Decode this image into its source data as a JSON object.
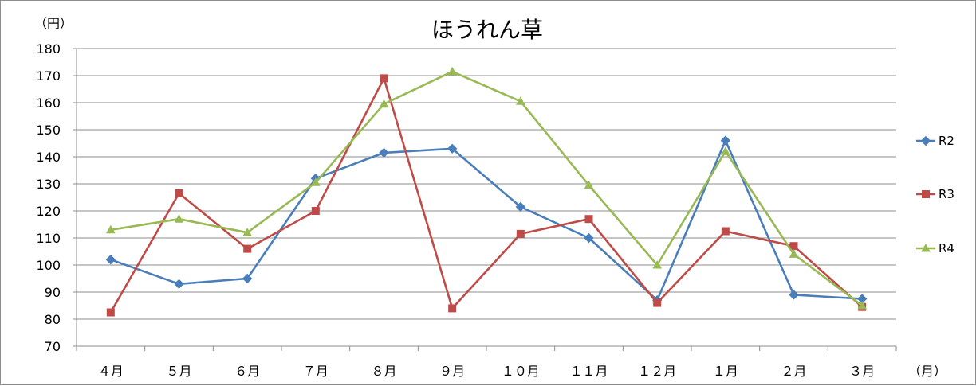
{
  "chart_data": {
    "type": "line",
    "title": "ほうれん草",
    "ylabel": "（円）",
    "xlabel": "（月）",
    "ylim": [
      70,
      180
    ],
    "yticks": [
      70,
      80,
      90,
      100,
      110,
      120,
      130,
      140,
      150,
      160,
      170,
      180
    ],
    "grid": true,
    "legend_position": "right",
    "categories": [
      "４月",
      "５月",
      "６月",
      "７月",
      "８月",
      "９月",
      "１０月",
      "１１月",
      "１２月",
      "１月",
      "２月",
      "３月"
    ],
    "series": [
      {
        "name": "R2",
        "marker": "diamond",
        "color": "#4a7ebb",
        "values": [
          102,
          93,
          95,
          132,
          141.5,
          143,
          121.5,
          110,
          87,
          146,
          89,
          87.5
        ]
      },
      {
        "name": "R3",
        "marker": "square",
        "color": "#be4b48",
        "values": [
          82.5,
          126.5,
          106,
          120,
          169,
          84,
          111.5,
          117,
          86,
          112.5,
          107,
          84.5
        ]
      },
      {
        "name": "R4",
        "marker": "triangle",
        "color": "#98b954",
        "values": [
          113,
          117,
          112,
          130.5,
          159.5,
          171.5,
          160.5,
          129.5,
          100,
          142,
          104,
          85
        ]
      }
    ]
  }
}
